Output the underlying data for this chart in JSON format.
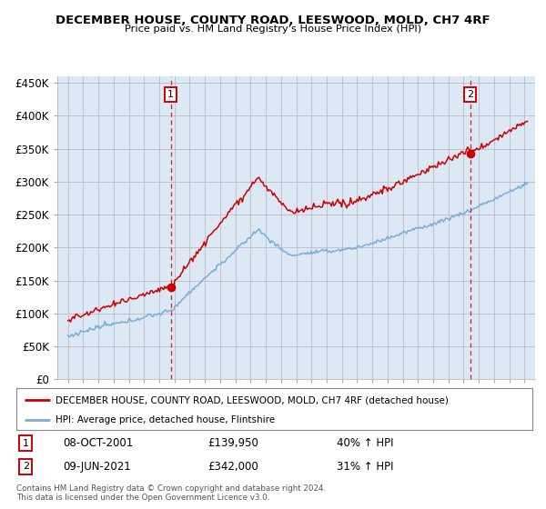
{
  "title": "DECEMBER HOUSE, COUNTY ROAD, LEESWOOD, MOLD, CH7 4RF",
  "subtitle": "Price paid vs. HM Land Registry's House Price Index (HPI)",
  "ylabel_ticks": [
    "£0",
    "£50K",
    "£100K",
    "£150K",
    "£200K",
    "£250K",
    "£300K",
    "£350K",
    "£400K",
    "£450K"
  ],
  "ytick_values": [
    0,
    50000,
    100000,
    150000,
    200000,
    250000,
    300000,
    350000,
    400000,
    450000
  ],
  "ylim": [
    0,
    460000
  ],
  "hpi_color": "#7aadd4",
  "price_color": "#cc0000",
  "chart_bg": "#dce9f5",
  "marker1_date": "08-OCT-2001",
  "marker1_price": 139950,
  "marker1_label": "40% ↑ HPI",
  "marker2_date": "09-JUN-2021",
  "marker2_price": 342000,
  "marker2_label": "31% ↑ HPI",
  "legend_line1": "DECEMBER HOUSE, COUNTY ROAD, LEESWOOD, MOLD, CH7 4RF (detached house)",
  "legend_line2": "HPI: Average price, detached house, Flintshire",
  "footer1": "Contains HM Land Registry data © Crown copyright and database right 2024.",
  "footer2": "This data is licensed under the Open Government Licence v3.0.",
  "background_color": "#ffffff",
  "grid_color": "#bbbbcc"
}
